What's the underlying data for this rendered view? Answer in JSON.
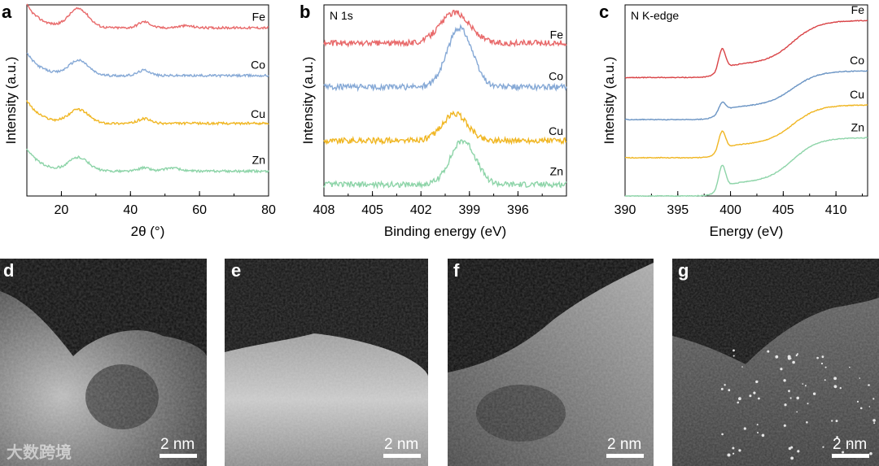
{
  "chart_data": [
    {
      "panel": "a",
      "type": "line",
      "title": "",
      "xlabel": "2θ (°)",
      "ylabel": "Intensity (a.u.)",
      "xlim": [
        10,
        80
      ],
      "xticks": [
        "20",
        "40",
        "60",
        "80"
      ],
      "series": [
        {
          "name": "Fe",
          "color": "#e8696a",
          "offset": 0.88,
          "base": 0.75,
          "features": [
            {
              "c": 25,
              "a": 0.28,
              "w": 4
            },
            {
              "c": 44,
              "a": 0.09,
              "w": 2.5
            },
            {
              "c": 56,
              "a": 0.03,
              "w": 3
            }
          ]
        },
        {
          "name": "Co",
          "color": "#86a9d6",
          "offset": 0.63,
          "base": 0.75,
          "features": [
            {
              "c": 25,
              "a": 0.22,
              "w": 4
            },
            {
              "c": 44,
              "a": 0.08,
              "w": 2.5
            }
          ]
        },
        {
          "name": "Cu",
          "color": "#f0b622",
          "offset": 0.38,
          "base": 0.75,
          "features": [
            {
              "c": 25,
              "a": 0.2,
              "w": 4
            },
            {
              "c": 44,
              "a": 0.07,
              "w": 2.5
            }
          ]
        },
        {
          "name": "Zn",
          "color": "#8dd4a8",
          "offset": 0.13,
          "base": 0.75,
          "features": [
            {
              "c": 25,
              "a": 0.2,
              "w": 4
            },
            {
              "c": 44,
              "a": 0.05,
              "w": 2.5
            },
            {
              "c": 52,
              "a": 0.05,
              "w": 3
            }
          ]
        }
      ]
    },
    {
      "panel": "b",
      "type": "line",
      "title": "N 1s",
      "xlabel": "Binding energy (eV)",
      "ylabel": "Intensity (a.u.)",
      "xlim": [
        408,
        393
      ],
      "xticks": [
        "408",
        "405",
        "402",
        "399",
        "396"
      ],
      "series": [
        {
          "name": "Fe",
          "color": "#e8696a",
          "offset": 0.8,
          "features": [
            {
              "c": 399.9,
              "a": 0.16,
              "w": 1.3
            }
          ]
        },
        {
          "name": "Co",
          "color": "#86a9d6",
          "offset": 0.57,
          "features": [
            {
              "c": 399.6,
              "a": 0.31,
              "w": 1.1
            }
          ]
        },
        {
          "name": "Cu",
          "color": "#f0b622",
          "offset": 0.29,
          "features": [
            {
              "c": 399.9,
              "a": 0.14,
              "w": 1.1
            }
          ]
        },
        {
          "name": "Zn",
          "color": "#8dd4a8",
          "offset": 0.06,
          "features": [
            {
              "c": 399.4,
              "a": 0.23,
              "w": 1.1
            }
          ]
        }
      ]
    },
    {
      "panel": "c",
      "type": "line",
      "title": "N K-edge",
      "xlabel": "Energy (eV)",
      "ylabel": "Intensity (a.u.)",
      "xlim": [
        390,
        413
      ],
      "xticks": [
        "390",
        "395",
        "400",
        "405",
        "410"
      ],
      "series": [
        {
          "name": "Fe",
          "color": "#d94346",
          "offset": 0.62,
          "step": 0.33,
          "peak": 0.22
        },
        {
          "name": "Co",
          "color": "#6a94c4",
          "offset": 0.4,
          "step": 0.27,
          "peak": 0.1
        },
        {
          "name": "Cu",
          "color": "#f0b622",
          "offset": 0.2,
          "step": 0.3,
          "peak": 0.2
        },
        {
          "name": "Zn",
          "color": "#8dd4a8",
          "offset": 0.0,
          "step": 0.34,
          "peak": 0.24
        }
      ]
    }
  ],
  "stem_panels": [
    {
      "letter": "d",
      "scale": "2 nm"
    },
    {
      "letter": "e",
      "scale": "2 nm"
    },
    {
      "letter": "f",
      "scale": "2 nm"
    },
    {
      "letter": "g",
      "scale": "2 nm"
    }
  ],
  "watermark": "大数跨境"
}
